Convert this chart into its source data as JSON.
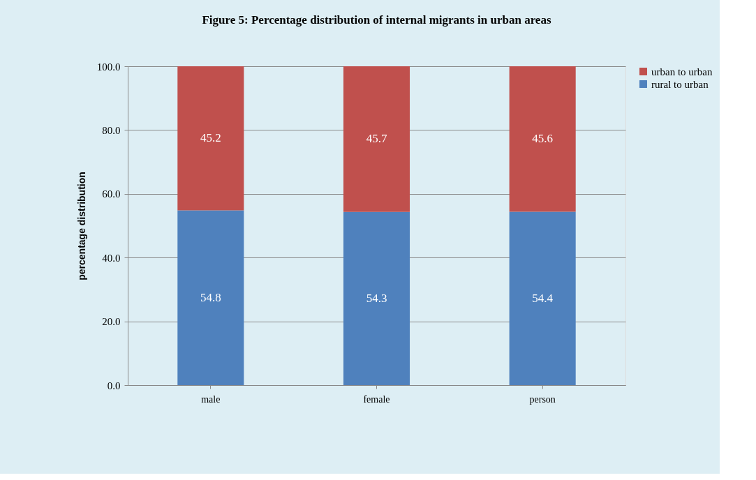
{
  "chart_data": {
    "type": "bar",
    "stacked": true,
    "title": "Figure 5: Percentage distribution of internal migrants in urban areas",
    "ylabel": "percentage distribution",
    "categories": [
      "male",
      "female",
      "person"
    ],
    "series": [
      {
        "name": "rural to urban",
        "color": "#4f81bd",
        "values": [
          54.8,
          54.3,
          54.4
        ]
      },
      {
        "name": "urban to urban",
        "color": "#c0504d",
        "values": [
          45.2,
          45.7,
          45.6
        ]
      }
    ],
    "ylim": [
      0,
      100
    ],
    "yticks": [
      {
        "value": 0,
        "label": "0.0"
      },
      {
        "value": 20,
        "label": "20.0"
      },
      {
        "value": 40,
        "label": "40.0"
      },
      {
        "value": 60,
        "label": "60.0"
      },
      {
        "value": 80,
        "label": "80.0"
      },
      {
        "value": 100,
        "label": "100.0"
      }
    ],
    "grid": "y",
    "legend": "right",
    "data_labels": true
  }
}
